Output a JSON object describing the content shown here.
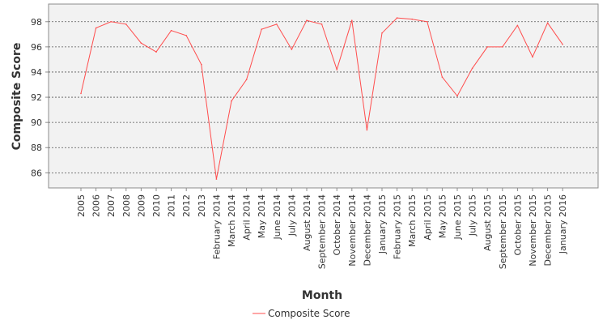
{
  "chart_data": {
    "type": "line",
    "title": "",
    "xlabel": "Month",
    "ylabel": "Composite Score",
    "ylim": [
      84.8,
      99.4
    ],
    "yticks": [
      86,
      88,
      90,
      92,
      94,
      96,
      98
    ],
    "grid": true,
    "legend_position": "bottom",
    "categories": [
      "2005",
      "2006",
      "2007",
      "2008",
      "2009",
      "2010",
      "2011",
      "2012",
      "2013",
      "February 2014",
      "March 2014",
      "April 2014",
      "May 2014",
      "June 2014",
      "July 2014",
      "August 2014",
      "September 2014",
      "October 2014",
      "November 2014",
      "December 2014",
      "January 2015",
      "February 2015",
      "March 2015",
      "April 2015",
      "May 2015",
      "June 2015",
      "July 2015",
      "August 2015",
      "September 2015",
      "October 2015",
      "November 2015",
      "December 2015",
      "January 2016"
    ],
    "series": [
      {
        "name": "Composite Score",
        "color": "#ff4d4d",
        "values": [
          92.3,
          97.5,
          98.0,
          97.8,
          96.3,
          95.6,
          97.3,
          96.9,
          94.6,
          85.5,
          91.7,
          93.4,
          97.4,
          97.8,
          95.8,
          98.1,
          97.8,
          94.2,
          98.1,
          89.4,
          97.1,
          98.3,
          98.2,
          98.0,
          93.6,
          92.1,
          94.3,
          96.0,
          96.0,
          97.7,
          95.2,
          97.9,
          96.2
        ]
      }
    ]
  }
}
